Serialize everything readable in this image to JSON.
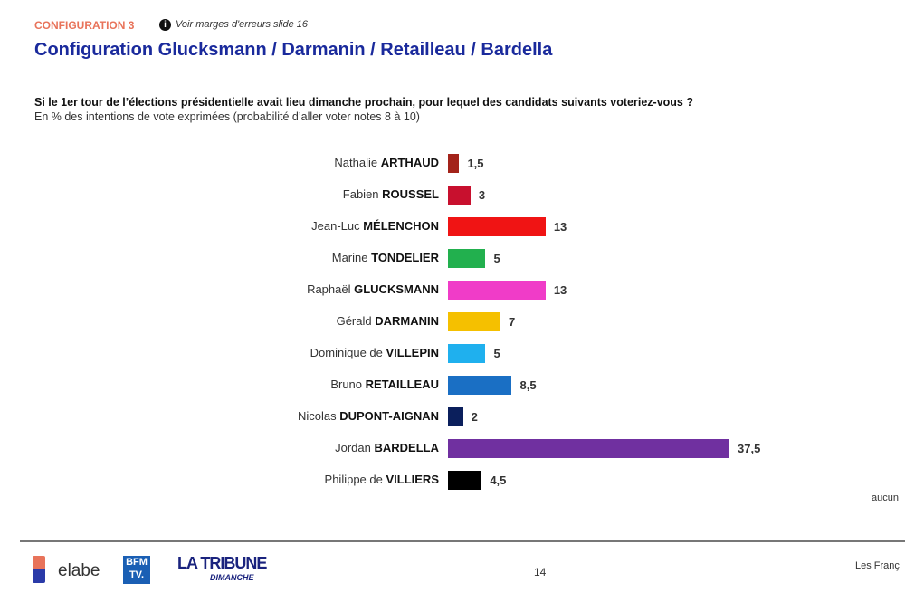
{
  "header": {
    "config_label": "CONFIGURATION 3",
    "note": "Voir marges d'erreurs slide 16",
    "title": "Configuration Glucksmann / Darmanin / Retailleau / Bardella"
  },
  "chart_data": {
    "type": "bar",
    "orientation": "horizontal",
    "title": "Si le 1er tour de l’élections présidentielle avait lieu dimanche prochain, pour lequel des candidats suivants voteriez-vous ?",
    "subtitle": "En % des intentions de vote exprimées (probabilité d’aller voter notes 8 à 10)",
    "xlim": [
      0,
      37.5
    ],
    "grid": false,
    "categories": [
      {
        "first": "Nathalie",
        "last": "ARTHAUD"
      },
      {
        "first": "Fabien",
        "last": "ROUSSEL"
      },
      {
        "first": "Jean-Luc",
        "last": "MÉLENCHON"
      },
      {
        "first": "Marine",
        "last": "TONDELIER"
      },
      {
        "first": "Raphaël",
        "last": "GLUCKSMANN"
      },
      {
        "first": "Gérald",
        "last": "DARMANIN"
      },
      {
        "first": "Dominique de",
        "last": "VILLEPIN"
      },
      {
        "first": "Bruno",
        "last": "RETAILLEAU"
      },
      {
        "first": "Nicolas",
        "last": "DUPONT-AIGNAN"
      },
      {
        "first": "Jordan",
        "last": "BARDELLA"
      },
      {
        "first": "Philippe de",
        "last": "VILLIERS"
      }
    ],
    "values": [
      1.5,
      3,
      13,
      5,
      13,
      7,
      5,
      8.5,
      2,
      37.5,
      4.5
    ],
    "value_labels": [
      "1,5",
      "3",
      "13",
      "5",
      "13",
      "7",
      "5",
      "8,5",
      "2",
      "37,5",
      "4,5"
    ],
    "colors": [
      "#a3231a",
      "#c8102e",
      "#f01414",
      "#22b04e",
      "#f03cc8",
      "#f5c000",
      "#1fb0ee",
      "#1a6fc4",
      "#0b1f5c",
      "#7030a0",
      "#000000"
    ]
  },
  "aside": {
    "aucun": "aucun"
  },
  "footer": {
    "elabe": "elabe",
    "bfm": "BFM TV.",
    "tribune": "LA TRIBUNE",
    "dimanche": "DIMANCHE",
    "page": "14",
    "right_text": "Les Franç"
  }
}
